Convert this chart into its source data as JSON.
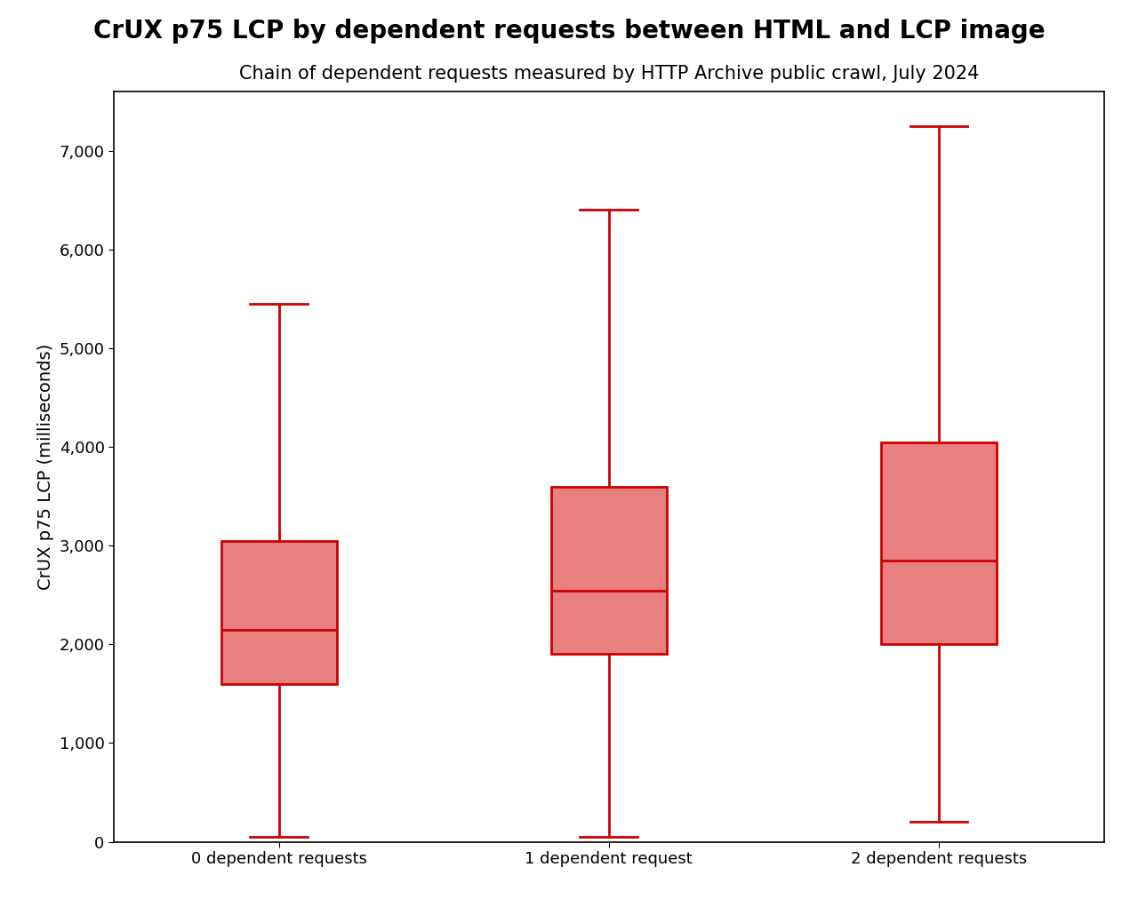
{
  "title": "CrUX p75 LCP by dependent requests between HTML and LCP image",
  "subtitle": "Chain of dependent requests measured by HTTP Archive public crawl, July 2024",
  "ylabel": "CrUX p75 LCP (milliseconds)",
  "categories": [
    "0 dependent requests",
    "1 dependent request",
    "2 dependent requests"
  ],
  "boxes": [
    {
      "whislo": 50,
      "q1": 1600,
      "med": 2150,
      "q3": 3050,
      "whishi": 5450
    },
    {
      "whislo": 50,
      "q1": 1900,
      "med": 2540,
      "q3": 3600,
      "whishi": 6400
    },
    {
      "whislo": 200,
      "q1": 2000,
      "med": 2850,
      "q3": 4050,
      "whishi": 7250
    }
  ],
  "box_color": "#e88080",
  "line_color": "#cc0000",
  "ylim": [
    0,
    7600
  ],
  "yticks": [
    0,
    1000,
    2000,
    3000,
    4000,
    5000,
    6000,
    7000
  ],
  "title_fontsize": 20,
  "subtitle_fontsize": 15,
  "label_fontsize": 14,
  "tick_fontsize": 13,
  "box_width": 0.35
}
